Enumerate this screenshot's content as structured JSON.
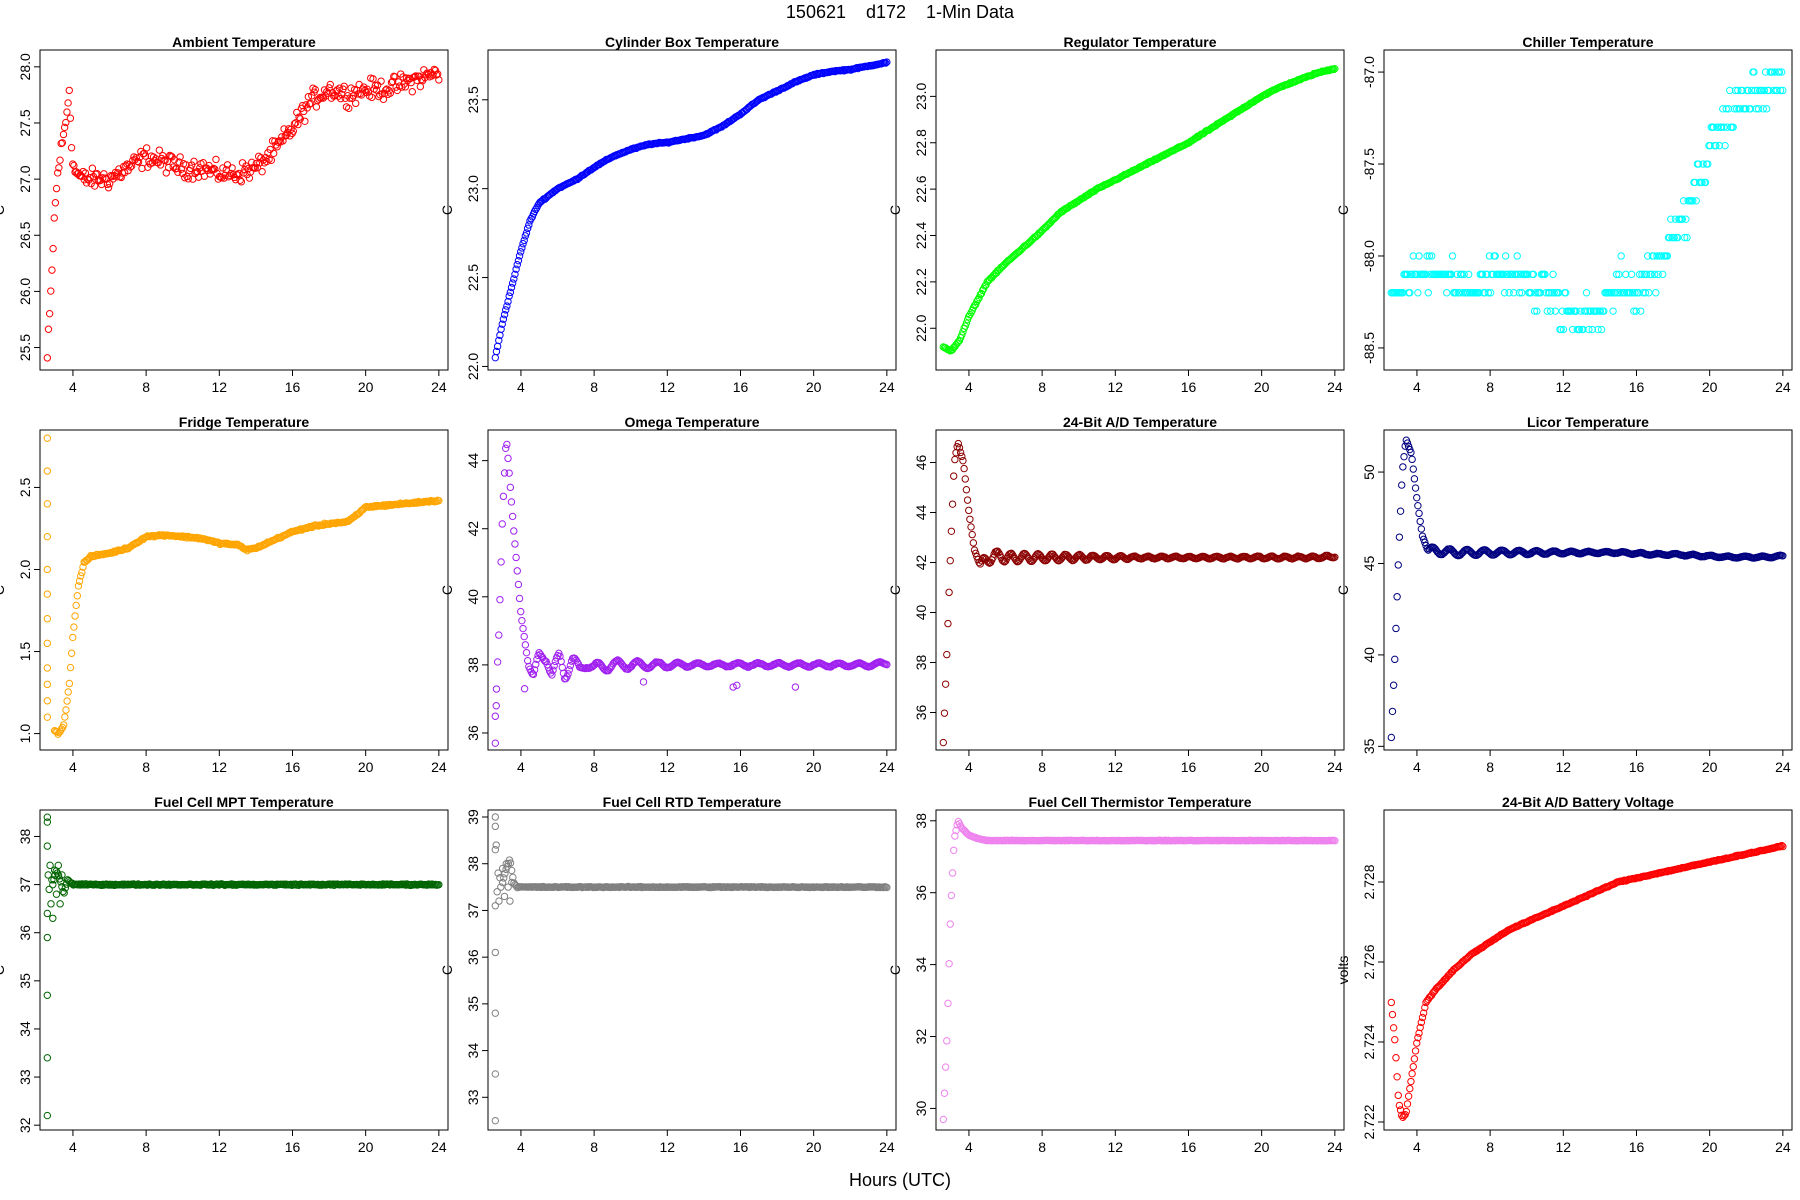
{
  "page": {
    "title": "150621    d172    1-Min Data",
    "xlabel": "Hours (UTC)"
  },
  "chart_data": [
    {
      "type": "scatter",
      "title": "Ambient Temperature",
      "ylabel": "C",
      "color": "#ff0000",
      "xlim": [
        2.2,
        24.5
      ],
      "ylim": [
        25.3,
        28.15
      ],
      "xticks": [
        4,
        8,
        12,
        16,
        20,
        24
      ],
      "yticks": [
        25.5,
        26.0,
        26.5,
        27.0,
        27.5,
        28.0
      ],
      "ytick_labels": [
        "25.5",
        "26.0",
        "26.5",
        "27.0",
        "27.5",
        "28.0"
      ],
      "x": [
        2.6,
        2.8,
        3.0,
        3.2,
        3.4,
        3.6,
        3.8,
        4.0,
        4.5,
        5,
        6,
        7,
        8,
        9,
        10,
        11,
        12,
        13,
        14,
        15,
        16,
        17,
        18,
        19,
        20,
        21,
        22,
        23,
        24
      ],
      "y": [
        25.4,
        26.0,
        26.7,
        27.1,
        27.3,
        27.5,
        27.8,
        27.1,
        27.0,
        27.0,
        27.0,
        27.1,
        27.2,
        27.15,
        27.1,
        27.1,
        27.05,
        27.05,
        27.1,
        27.25,
        27.45,
        27.7,
        27.8,
        27.75,
        27.8,
        27.8,
        27.85,
        27.9,
        27.95
      ],
      "noise": 0.13
    },
    {
      "type": "scatter",
      "title": "Cylinder Box Temperature",
      "ylabel": "C",
      "color": "#0000ff",
      "xlim": [
        2.2,
        24.5
      ],
      "ylim": [
        21.98,
        23.78
      ],
      "xticks": [
        4,
        8,
        12,
        16,
        20,
        24
      ],
      "yticks": [
        22.0,
        22.5,
        23.0,
        23.5
      ],
      "ytick_labels": [
        "22.0",
        "22.5",
        "23.0",
        "23.5"
      ],
      "x": [
        2.6,
        3,
        3.5,
        4,
        4.5,
        5,
        6,
        7,
        8,
        9,
        10,
        11,
        12,
        13,
        14,
        15,
        16,
        17,
        18,
        19,
        20,
        21,
        22,
        23,
        24
      ],
      "y": [
        22.05,
        22.25,
        22.45,
        22.65,
        22.82,
        22.92,
        23.0,
        23.05,
        23.12,
        23.18,
        23.22,
        23.25,
        23.26,
        23.28,
        23.3,
        23.35,
        23.42,
        23.5,
        23.55,
        23.6,
        23.64,
        23.66,
        23.67,
        23.69,
        23.71
      ],
      "noise": 0.005
    },
    {
      "type": "scatter",
      "title": "Regulator Temperature",
      "ylabel": "C",
      "color": "#00ff00",
      "xlim": [
        2.2,
        24.5
      ],
      "ylim": [
        21.82,
        23.2
      ],
      "xticks": [
        4,
        8,
        12,
        16,
        20,
        24
      ],
      "yticks": [
        22.0,
        22.2,
        22.4,
        22.6,
        22.8,
        23.0
      ],
      "ytick_labels": [
        "22.0",
        "22.2",
        "22.4",
        "22.6",
        "22.8",
        "23.0"
      ],
      "x": [
        2.6,
        3,
        3.5,
        4,
        5,
        6,
        7,
        8,
        9,
        10,
        11,
        12,
        13,
        14,
        15,
        16,
        17,
        18,
        19,
        20,
        21,
        22,
        23,
        24
      ],
      "y": [
        21.92,
        21.9,
        21.95,
        22.05,
        22.2,
        22.28,
        22.35,
        22.42,
        22.5,
        22.55,
        22.6,
        22.64,
        22.68,
        22.72,
        22.76,
        22.8,
        22.85,
        22.9,
        22.95,
        23.0,
        23.04,
        23.07,
        23.1,
        23.12
      ],
      "noise": 0.004
    },
    {
      "type": "scatter",
      "title": "Chiller Temperature",
      "ylabel": "C",
      "color": "#00ffff",
      "xlim": [
        2.2,
        24.5
      ],
      "ylim": [
        -88.62,
        -86.88
      ],
      "xticks": [
        4,
        8,
        12,
        16,
        20,
        24
      ],
      "yticks": [
        -88.5,
        -88.0,
        -87.5,
        -87.0
      ],
      "ytick_labels": [
        "-88.5",
        "-88.0",
        "-87.5",
        "-87.0"
      ],
      "x": [
        2.6,
        4,
        5,
        6,
        7,
        8,
        9,
        10,
        11,
        12,
        13,
        14,
        15,
        16,
        17,
        18,
        19,
        20,
        21,
        22,
        23,
        24
      ],
      "y": [
        -88.2,
        -88.1,
        -88.05,
        -88.15,
        -88.2,
        -88.1,
        -88.1,
        -88.15,
        -88.2,
        -88.3,
        -88.35,
        -88.3,
        -88.15,
        -88.2,
        -88.05,
        -87.9,
        -87.7,
        -87.4,
        -87.25,
        -87.15,
        -87.1,
        -87.05
      ],
      "quantum": 0.1,
      "noise": 0.16
    },
    {
      "type": "scatter",
      "title": "Fridge Temperature",
      "ylabel": "C",
      "color": "#ffa500",
      "xlim": [
        2.2,
        24.5
      ],
      "ylim": [
        0.9,
        2.85
      ],
      "xticks": [
        4,
        8,
        12,
        16,
        20,
        24
      ],
      "yticks": [
        1.0,
        1.5,
        2.0,
        2.5
      ],
      "ytick_labels": [
        "1.0",
        "1.5",
        "2.0",
        "2.5"
      ],
      "x": [
        3.0,
        3.2,
        3.5,
        3.8,
        4.0,
        4.3,
        4.6,
        5,
        6,
        7,
        8,
        9,
        10,
        11,
        12,
        13,
        13.5,
        14,
        15,
        16,
        17,
        18,
        19,
        19.5,
        20,
        21,
        22,
        23,
        24
      ],
      "y": [
        1.02,
        1.0,
        1.05,
        1.3,
        1.6,
        1.9,
        2.04,
        2.08,
        2.1,
        2.13,
        2.2,
        2.21,
        2.2,
        2.19,
        2.16,
        2.15,
        2.12,
        2.13,
        2.18,
        2.23,
        2.26,
        2.28,
        2.29,
        2.33,
        2.38,
        2.39,
        2.4,
        2.41,
        2.42
      ],
      "noise": 0.008,
      "extra_x": [
        2.6,
        2.6,
        2.6,
        2.6,
        2.6,
        2.6,
        2.6,
        2.6,
        2.6,
        2.6,
        2.6,
        2.6
      ],
      "extra_y": [
        2.8,
        2.6,
        2.4,
        2.2,
        2.0,
        1.85,
        1.7,
        1.55,
        1.4,
        1.3,
        1.2,
        1.1
      ]
    },
    {
      "type": "scatter",
      "title": "Omega Temperature",
      "ylabel": "C",
      "color": "#a020f0",
      "xlim": [
        2.2,
        24.5
      ],
      "ylim": [
        35.5,
        44.9
      ],
      "xticks": [
        4,
        8,
        12,
        16,
        20,
        24
      ],
      "yticks": [
        36,
        38,
        40,
        42,
        44
      ],
      "ytick_labels": [
        "36",
        "38",
        "40",
        "42",
        "44"
      ],
      "x": [
        2.6,
        2.8,
        3.0,
        3.2,
        3.6,
        4.0,
        4.4,
        4.7,
        5.0,
        5.4,
        5.7,
        6.1,
        6.4,
        6.8,
        7.2,
        7.6,
        8,
        9,
        10,
        11,
        12,
        13,
        14,
        15,
        16,
        17,
        18,
        19,
        20,
        21,
        22,
        23,
        24
      ],
      "y": [
        36.5,
        39.0,
        42.5,
        44.7,
        42.0,
        39.5,
        38.0,
        37.6,
        38.2,
        38.3,
        37.7,
        38.2,
        37.7,
        38.2,
        37.8,
        38.1,
        37.9,
        38.0,
        38.0,
        38.0,
        38.0,
        38.0,
        38.0,
        38.0,
        38.0,
        38.0,
        38.0,
        38.0,
        38.0,
        38.0,
        38.0,
        38.0,
        38.05
      ],
      "wave_amp": 0.22,
      "wave_period": 1.1,
      "noise": 0.02,
      "extra_x": [
        2.6,
        2.65,
        4.2,
        10.7,
        15.6,
        15.8,
        19.0
      ],
      "extra_y": [
        35.7,
        36.8,
        37.3,
        37.5,
        37.35,
        37.4,
        37.35
      ]
    },
    {
      "type": "scatter",
      "title": "24-Bit A/D Temperature",
      "ylabel": "C",
      "color": "#8b0000",
      "xlim": [
        2.2,
        24.5
      ],
      "ylim": [
        34.5,
        47.3
      ],
      "xticks": [
        4,
        8,
        12,
        16,
        20,
        24
      ],
      "yticks": [
        36,
        38,
        40,
        42,
        44,
        46
      ],
      "ytick_labels": [
        "36",
        "38",
        "40",
        "42",
        "44",
        "46"
      ],
      "x": [
        2.6,
        2.8,
        3.0,
        3.2,
        3.4,
        3.7,
        4.0,
        4.3,
        4.6,
        5.0,
        5.4,
        6,
        7,
        8,
        9,
        10,
        11,
        12,
        13,
        14,
        15,
        16,
        17,
        18,
        19,
        20,
        21,
        22,
        23,
        24
      ],
      "y": [
        34.8,
        38.5,
        42.5,
        46.0,
        46.8,
        46.0,
        44.0,
        42.5,
        41.9,
        42.1,
        42.3,
        42.2,
        42.2,
        42.2,
        42.2,
        42.2,
        42.2,
        42.2,
        42.2,
        42.2,
        42.2,
        42.2,
        42.2,
        42.2,
        42.2,
        42.2,
        42.2,
        42.2,
        42.2,
        42.25
      ],
      "wave_amp": 0.2,
      "wave_period": 0.75,
      "noise": 0.02
    },
    {
      "type": "scatter",
      "title": "Licor Temperature",
      "ylabel": "C",
      "color": "#000080",
      "xlim": [
        2.2,
        24.5
      ],
      "ylim": [
        34.8,
        52.3
      ],
      "xticks": [
        4,
        8,
        12,
        16,
        20,
        24
      ],
      "yticks": [
        35,
        40,
        45,
        50
      ],
      "ytick_labels": [
        "35",
        "40",
        "45",
        "50"
      ],
      "x": [
        2.6,
        2.8,
        3.0,
        3.2,
        3.4,
        3.7,
        4.0,
        4.3,
        4.6,
        5.0,
        6,
        7,
        8,
        9,
        10,
        11,
        12,
        13,
        14,
        15,
        16,
        17,
        18,
        19,
        20,
        21,
        22,
        23,
        24
      ],
      "y": [
        35.5,
        40.0,
        45.5,
        50.0,
        51.8,
        51.0,
        48.5,
        46.5,
        45.7,
        45.7,
        45.6,
        45.6,
        45.6,
        45.6,
        45.6,
        45.6,
        45.6,
        45.6,
        45.6,
        45.6,
        45.55,
        45.5,
        45.5,
        45.45,
        45.4,
        45.35,
        45.35,
        45.35,
        45.4
      ],
      "wave_amp": 0.2,
      "wave_period": 0.95,
      "noise": 0.02
    },
    {
      "type": "scatter",
      "title": "Fuel Cell MPT Temperature",
      "ylabel": "C",
      "color": "#006400",
      "xlim": [
        2.2,
        24.5
      ],
      "ylim": [
        31.9,
        38.55
      ],
      "xticks": [
        4,
        8,
        12,
        16,
        20,
        24
      ],
      "yticks": [
        32,
        33,
        34,
        35,
        36,
        37,
        38
      ],
      "ytick_labels": [
        "32",
        "33",
        "34",
        "35",
        "36",
        "37",
        "38"
      ],
      "x": [
        2.9,
        3.1,
        3.3,
        3.5,
        3.7,
        4,
        5,
        6,
        8,
        10,
        12,
        14,
        16,
        18,
        20,
        22,
        24
      ],
      "y": [
        37.0,
        37.3,
        37.1,
        36.8,
        37.1,
        37.0,
        37.0,
        37.0,
        37.0,
        37.0,
        37.0,
        37.0,
        37.0,
        37.0,
        37.0,
        37.0,
        37.0
      ],
      "noise": 0.02,
      "extra_x": [
        2.6,
        2.6,
        2.6,
        2.6,
        2.6,
        2.6,
        2.6,
        2.6,
        2.65,
        2.7,
        2.75,
        2.8,
        2.85,
        2.9,
        3.0,
        3.1,
        3.2,
        3.3,
        3.4
      ],
      "extra_y": [
        32.2,
        33.4,
        34.7,
        35.9,
        36.4,
        37.8,
        38.3,
        38.4,
        37.2,
        36.9,
        37.4,
        36.6,
        37.1,
        36.3,
        37.3,
        36.8,
        37.4,
        36.6,
        37.2
      ]
    },
    {
      "type": "scatter",
      "title": "Fuel Cell RTD Temperature",
      "ylabel": "C",
      "color": "#808080",
      "xlim": [
        2.2,
        24.5
      ],
      "ylim": [
        32.3,
        39.15
      ],
      "xticks": [
        4,
        8,
        12,
        16,
        20,
        24
      ],
      "yticks": [
        33,
        34,
        35,
        36,
        37,
        38,
        39
      ],
      "ytick_labels": [
        "33",
        "34",
        "35",
        "36",
        "37",
        "38",
        "39"
      ],
      "x": [
        3.0,
        3.2,
        3.4,
        3.6,
        3.8,
        4.0,
        5,
        6,
        8,
        10,
        12,
        14,
        16,
        18,
        20,
        22,
        24
      ],
      "y": [
        37.6,
        37.9,
        38.1,
        37.6,
        37.5,
        37.5,
        37.5,
        37.5,
        37.5,
        37.5,
        37.5,
        37.5,
        37.5,
        37.5,
        37.5,
        37.5,
        37.5
      ],
      "noise": 0.015,
      "extra_x": [
        2.6,
        2.6,
        2.6,
        2.6,
        2.6,
        2.6,
        2.6,
        2.6,
        2.65,
        2.7,
        2.75,
        2.8,
        2.85,
        2.9,
        3.0,
        3.1,
        3.2,
        3.3,
        3.4,
        3.5
      ],
      "extra_y": [
        32.5,
        33.5,
        34.8,
        36.1,
        37.1,
        38.3,
        38.8,
        39.0,
        38.4,
        37.4,
        37.8,
        37.2,
        37.7,
        37.5,
        37.9,
        37.3,
        38.0,
        37.5,
        37.2,
        37.6
      ]
    },
    {
      "type": "scatter",
      "title": "Fuel Cell Thermistor Temperature",
      "ylabel": "C",
      "color": "#ee82ee",
      "xlim": [
        2.2,
        24.5
      ],
      "ylim": [
        29.4,
        38.3
      ],
      "xticks": [
        4,
        8,
        12,
        16,
        20,
        24
      ],
      "yticks": [
        30,
        32,
        34,
        36,
        38
      ],
      "ytick_labels": [
        "30",
        "32",
        "34",
        "36",
        "38"
      ],
      "x": [
        2.6,
        2.8,
        3.0,
        3.2,
        3.4,
        3.6,
        4.0,
        4.5,
        5,
        6,
        8,
        10,
        12,
        14,
        16,
        18,
        20,
        22,
        24
      ],
      "y": [
        29.7,
        32.0,
        35.5,
        37.5,
        38.0,
        37.8,
        37.6,
        37.5,
        37.45,
        37.45,
        37.45,
        37.45,
        37.45,
        37.45,
        37.45,
        37.45,
        37.45,
        37.45,
        37.45
      ],
      "noise": 0.01
    },
    {
      "type": "scatter",
      "title": "24-Bit A/D Battery Voltage",
      "ylabel": "volts",
      "color": "#ff0000",
      "xlim": [
        2.2,
        24.5
      ],
      "ylim": [
        2.7218,
        2.7298
      ],
      "xticks": [
        4,
        8,
        12,
        16,
        20,
        24
      ],
      "yticks": [
        2.722,
        2.724,
        2.726,
        2.728
      ],
      "ytick_labels": [
        "2.722",
        "2.724",
        "2.726",
        "2.728"
      ],
      "x": [
        2.6,
        2.8,
        3.0,
        3.2,
        3.4,
        3.6,
        4.0,
        4.5,
        5,
        6,
        7,
        8,
        9,
        10,
        11,
        12,
        13,
        14,
        15,
        16,
        17,
        18,
        19,
        20,
        21,
        22,
        23,
        24
      ],
      "y": [
        2.725,
        2.724,
        2.7225,
        2.7221,
        2.7222,
        2.7228,
        2.724,
        2.725,
        2.7253,
        2.7258,
        2.7262,
        2.7265,
        2.7268,
        2.727,
        2.7272,
        2.7274,
        2.7276,
        2.7278,
        2.728,
        2.7281,
        2.7282,
        2.7283,
        2.7284,
        2.7285,
        2.7286,
        2.7287,
        2.7288,
        2.7289
      ],
      "noise": 2e-05
    }
  ]
}
